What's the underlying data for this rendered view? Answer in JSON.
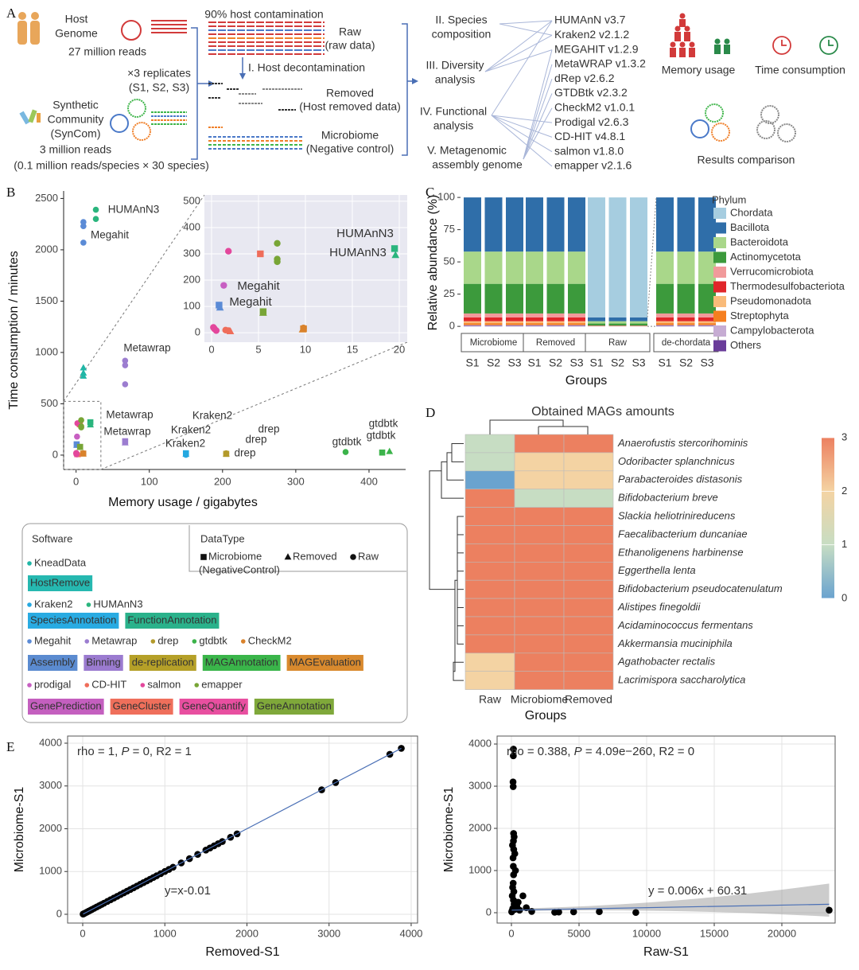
{
  "panel_labels": [
    "A",
    "B",
    "C",
    "D",
    "E"
  ],
  "panel_a": {
    "host": [
      "Host",
      "Genome"
    ],
    "host_reads": "27 million reads",
    "replicates": [
      "×3 replicates",
      "(S1, S2, S3)"
    ],
    "syncom": [
      "Synthetic",
      "Community",
      "(SynCom)"
    ],
    "syncom_reads": [
      "3 million reads",
      "(0.1 million reads/species  × 30 species)"
    ],
    "contamination": "90% host contamination",
    "decontamination": "I. Host decontamination",
    "raw": [
      "Raw",
      "(raw data)"
    ],
    "removed": [
      "Removed",
      "(Host removed data)"
    ],
    "microbiome": [
      "Microbiome",
      "(Negative control)"
    ],
    "analyses": [
      [
        "II. Species",
        "composition"
      ],
      [
        "III. Diversity",
        "analysis"
      ],
      [
        "IV. Functional",
        "analysis"
      ],
      [
        "V. Metagenomic",
        "assembly genome"
      ]
    ],
    "tools": [
      "HUMAnN v3.7",
      "Kraken2 v2.1.2",
      "MEGAHIT v1.2.9",
      "MetaWRAP v1.3.2",
      "dRep v2.6.2",
      "GTDBtk v2.3.2",
      "CheckM2 v1.0.1",
      "Prodigal v2.6.3",
      "CD-HIT v4.8.1",
      "salmon v1.8.0",
      "emapper v2.1.6"
    ],
    "memory": "Memory usage",
    "time": "Time consumption",
    "comparison": "Results comparison"
  },
  "chart_data": [
    {
      "type": "scatter",
      "xlabel": "Memory usage / gigabytes",
      "ylabel": "Time consumption / minutes",
      "xlim": [
        -17,
        450
      ],
      "ylim": [
        -140,
        2573
      ],
      "xticks": [
        0,
        100,
        200,
        300,
        400
      ],
      "yticks": [
        0,
        500,
        1000,
        1500,
        2000,
        2500
      ],
      "series": [
        {
          "name": "KneadData",
          "color": "#20b6a6",
          "category": "HostRemove",
          "x": [
            10,
            10,
            10
          ],
          "values": [
            850,
            800,
            770
          ],
          "markers": [
            "triangle",
            "triangle",
            "triangle"
          ]
        },
        {
          "name": "Kraken2",
          "color": "#25a8e0",
          "category": "SpeciesAnnotation",
          "x": [
            150,
            150,
            150
          ],
          "values": [
            18,
            8,
            3
          ],
          "markers": [
            "square",
            "triangle",
            "circle"
          ]
        },
        {
          "name": "HUMAnN3",
          "color": "#2ab57d",
          "category": "FunctionAnnotation",
          "x": [
            27,
            27,
            19.5,
            19.6
          ],
          "values": [
            2390,
            2300,
            320,
            295
          ],
          "markers": [
            "circle",
            "circle",
            "square",
            "triangle"
          ]
        },
        {
          "name": "Megahit",
          "color": "#5b8bd6",
          "category": "Assembly",
          "x": [
            10,
            10,
            10,
            0.8,
            0.9
          ],
          "values": [
            2270,
            2230,
            2070,
            105,
            95
          ],
          "markers": [
            "circle",
            "circle",
            "circle",
            "square",
            "triangle"
          ]
        },
        {
          "name": "Metawrap",
          "color": "#9c7dd0",
          "category": "Binning",
          "x": [
            67,
            67,
            67,
            67,
            67
          ],
          "values": [
            920,
            875,
            690,
            135,
            120
          ],
          "markers": [
            "circle",
            "circle",
            "circle",
            "square",
            "triangle"
          ]
        },
        {
          "name": "drep",
          "color": "#b39a2b",
          "category": "de-replication",
          "x": [
            205,
            205,
            205
          ],
          "values": [
            18,
            12,
            10
          ],
          "markers": [
            "circle",
            "square",
            "triangle"
          ]
        },
        {
          "name": "gtdbtk",
          "color": "#3bb34a",
          "category": "MAGAnnotation",
          "x": [
            368,
            418,
            428
          ],
          "values": [
            30,
            25,
            35
          ],
          "markers": [
            "circle",
            "square",
            "triangle"
          ]
        },
        {
          "name": "CheckM2",
          "color": "#d9822b",
          "category": "MAGEvaluation",
          "x": [
            9.8,
            9.7,
            9.8
          ],
          "values": [
            15,
            12,
            18
          ],
          "markers": [
            "square",
            "triangle",
            "circle"
          ]
        },
        {
          "name": "prodigal",
          "color": "#c75fc2",
          "category": "GenePrediction",
          "x": [
            1.3
          ],
          "values": [
            180
          ],
          "markers": [
            "circle"
          ]
        },
        {
          "name": "CD-HIT",
          "color": "#ef6d5a",
          "category": "GeneCluster",
          "x": [
            5.2,
            1.5,
            2,
            1.8
          ],
          "values": [
            300,
            10,
            5,
            8
          ],
          "markers": [
            "square",
            "circle",
            "triangle",
            "circle"
          ]
        },
        {
          "name": "salmon",
          "color": "#e3479c",
          "category": "GeneQuantify",
          "x": [
            1.8,
            0.3,
            0.5,
            0.2
          ],
          "values": [
            310,
            15,
            8,
            20
          ],
          "markers": [
            "circle",
            "circle",
            "circle",
            "circle"
          ]
        },
        {
          "name": "emapper",
          "color": "#78a536",
          "category": "GeneAnnotation",
          "x": [
            7,
            7,
            7,
            5.5,
            5.5
          ],
          "values": [
            340,
            280,
            270,
            80,
            75
          ],
          "markers": [
            "circle",
            "circle",
            "circle",
            "square",
            "triangle"
          ]
        }
      ],
      "annotations": [
        "HUMAnN3",
        "Megahit",
        "Metawrap",
        "Metawrap",
        "Metawrap",
        "Kraken2",
        "Kraken2",
        "Kraken2",
        "drep",
        "drep",
        "drep",
        "gtdbtk",
        "gtdbtk",
        "gtdbtk"
      ],
      "inset": {
        "xlim": [
          -0.76,
          20.85
        ],
        "ylim": [
          -36,
          524
        ],
        "xticks": [
          0,
          5,
          10,
          15,
          20
        ],
        "yticks": [
          0,
          100,
          200,
          300,
          400,
          500
        ],
        "grid": true,
        "annotations": [
          "HUMAnN3",
          "HUMAnN3",
          "Megahit",
          "Megahit"
        ]
      },
      "legend": {
        "software_title": "Software",
        "datatype_title": "DataType",
        "categories": [
          {
            "name": "HostRemove",
            "color": "#26b8b0"
          },
          {
            "name": "SpeciesAnnotation",
            "color": "#29abe2"
          },
          {
            "name": "FunctionAnnotation",
            "color": "#2ab28b"
          },
          {
            "name": "Assembly",
            "color": "#5b8bd0"
          },
          {
            "name": "Binning",
            "color": "#9b7bd0"
          },
          {
            "name": "de-replication",
            "color": "#b5a028"
          },
          {
            "name": "MAGAnnotation",
            "color": "#3ab54a"
          },
          {
            "name": "MAGEvaluation",
            "color": "#d98a2e"
          },
          {
            "name": "GenePrediction",
            "color": "#c45fbf"
          },
          {
            "name": "GeneCluster",
            "color": "#ef6f5b"
          },
          {
            "name": "GeneQuantify",
            "color": "#e84fa0"
          },
          {
            "name": "GeneAnnotation",
            "color": "#7fa83a"
          }
        ],
        "datatypes": [
          {
            "lines": [
              "Microbiome",
              "(NegativeControl)"
            ],
            "marker": "square"
          },
          {
            "lines": [
              "Removed"
            ],
            "marker": "triangle"
          },
          {
            "lines": [
              "Raw"
            ],
            "marker": "circle"
          }
        ]
      }
    },
    {
      "type": "bar",
      "stacked": true,
      "xlabel": "Groups",
      "ylabel": "Relative abundance (%)",
      "legend_title": "Phylum",
      "categories": [
        "S1",
        "S2",
        "S3",
        "S1",
        "S2",
        "S3",
        "S1",
        "S2",
        "S3",
        "S1",
        "S2",
        "S3"
      ],
      "groups": [
        "Microbiome",
        "Removed",
        "Raw",
        "de-chordata"
      ],
      "ylim": [
        -3,
        105
      ],
      "yticks": [
        0,
        25,
        50,
        75,
        100
      ],
      "series": [
        {
          "name": "Chordata",
          "color": "#a6cde0",
          "values": [
            0,
            0,
            0,
            0,
            0,
            0,
            93,
            93,
            93,
            0,
            0,
            0
          ]
        },
        {
          "name": "Bacillota",
          "color": "#2f6ea9",
          "values": [
            42,
            42,
            42,
            42,
            42,
            42,
            3,
            3,
            3,
            42,
            42,
            42
          ]
        },
        {
          "name": "Bacteroidota",
          "color": "#a9d78a",
          "values": [
            25,
            25,
            25,
            25,
            25,
            25,
            1.8,
            1.8,
            1.8,
            25,
            25,
            25
          ]
        },
        {
          "name": "Actinomycetota",
          "color": "#3c9a3c",
          "values": [
            23,
            23,
            23,
            23,
            23,
            23,
            1.6,
            1.6,
            1.6,
            23,
            23,
            23
          ]
        },
        {
          "name": "Verrucomicrobiota",
          "color": "#f19a9b",
          "values": [
            3,
            3,
            3,
            3,
            3,
            3,
            0.2,
            0.2,
            0.2,
            3,
            3,
            3
          ]
        },
        {
          "name": "Thermodesulfobacteriota",
          "color": "#e0262a",
          "values": [
            3,
            3,
            3,
            3,
            3,
            3,
            0.2,
            0.2,
            0.2,
            3,
            3,
            3
          ]
        },
        {
          "name": "Pseudomonadota",
          "color": "#f9bb7a",
          "values": [
            1.5,
            1.5,
            1.5,
            1.5,
            1.5,
            1.5,
            0.1,
            0.1,
            0.1,
            1.5,
            1.5,
            1.5
          ]
        },
        {
          "name": "Streptophyta",
          "color": "#f57f20",
          "values": [
            1.5,
            1.5,
            1.5,
            1.5,
            1.5,
            1.5,
            0.05,
            0.05,
            0.05,
            1.5,
            1.5,
            1.5
          ]
        },
        {
          "name": "Campylobacterota",
          "color": "#c6acd3",
          "values": [
            0.5,
            0.5,
            0.5,
            0.5,
            0.5,
            0.5,
            0.03,
            0.03,
            0.03,
            0.5,
            0.5,
            0.5
          ]
        },
        {
          "name": "Others",
          "color": "#6a3d9a",
          "values": [
            0.5,
            0.5,
            0.5,
            0.5,
            0.5,
            0.5,
            0.02,
            0.02,
            0.02,
            0.5,
            0.5,
            0.5
          ]
        }
      ]
    },
    {
      "type": "heatmap",
      "title": "Obtained MAGs amounts",
      "xlabel": "Groups",
      "columns": [
        "Raw",
        "Microbiome",
        "Removed"
      ],
      "rows": [
        "Anaerofustis stercorihominis",
        "Odoribacter splanchnicus",
        "Parabacteroides distasonis",
        "Bifidobacterium breve",
        "Slackia heliotrinireducens",
        "Faecalibacterium duncaniae",
        "Ethanoligenens harbinense",
        "Eggerthella lenta",
        "Bifidobacterium pseudocatenulatum",
        "Alistipes finegoldii",
        "Acidaminococcus fermentans",
        "Akkermansia muciniphila",
        "Agathobacter rectalis",
        "Lacrimispora saccharolytica"
      ],
      "values": [
        [
          1,
          3,
          3
        ],
        [
          1,
          2,
          2
        ],
        [
          0,
          2,
          2
        ],
        [
          3,
          1,
          1
        ],
        [
          3,
          3,
          3
        ],
        [
          3,
          3,
          3
        ],
        [
          3,
          3,
          3
        ],
        [
          3,
          3,
          3
        ],
        [
          3,
          3,
          3
        ],
        [
          3,
          3,
          3
        ],
        [
          3,
          3,
          3
        ],
        [
          3,
          3,
          3
        ],
        [
          2,
          3,
          3
        ],
        [
          2,
          3,
          3
        ]
      ],
      "colorbar": {
        "lim": [
          0,
          3
        ],
        "ticks": [
          0,
          1,
          2,
          3
        ],
        "colors": [
          "#6aa3cf",
          "#c7ddc3",
          "#f4d3a3",
          "#ec8060"
        ]
      }
    },
    {
      "type": "scatter",
      "xlabel": "Removed-S1",
      "ylabel": "Microbiome-S1",
      "grid": true,
      "color": "#000000",
      "xlim": [
        -184,
        4078
      ],
      "ylim": [
        -205,
        4167
      ],
      "xticks": [
        0,
        1000,
        2000,
        3000,
        4000
      ],
      "yticks": [
        0,
        1000,
        2000,
        3000,
        4000
      ],
      "x": [
        5,
        15,
        30,
        50,
        70,
        90,
        110,
        140,
        170,
        200,
        230,
        260,
        300,
        340,
        380,
        420,
        460,
        500,
        540,
        580,
        620,
        660,
        700,
        740,
        780,
        820,
        860,
        900,
        950,
        1000,
        1050,
        1100,
        1200,
        1300,
        1400,
        1500,
        1550,
        1600,
        1650,
        1700,
        1800,
        1880,
        2910,
        3080,
        3740,
        3880
      ],
      "values": [
        5,
        15,
        30,
        50,
        70,
        90,
        110,
        140,
        170,
        200,
        230,
        260,
        300,
        340,
        380,
        420,
        460,
        500,
        540,
        580,
        620,
        660,
        700,
        740,
        780,
        820,
        860,
        900,
        950,
        1000,
        1050,
        1100,
        1200,
        1300,
        1400,
        1500,
        1550,
        1600,
        1650,
        1700,
        1800,
        1880,
        2910,
        3080,
        3740,
        3880
      ],
      "fit": {
        "slope": 1,
        "intercept": -0.01,
        "color": "#4a6fb5"
      },
      "stats_text": [
        "rho = 1, ",
        "P",
        " = 0, R2 = 1"
      ],
      "fit_label": "y=x-0.01",
      "confidence_band": false
    },
    {
      "type": "scatter",
      "xlabel": "Raw-S1",
      "ylabel": "Microbiome-S1",
      "grid": true,
      "color": "#000000",
      "xlim": [
        -1059,
        23941
      ],
      "ylim": [
        -245,
        4189
      ],
      "xticks": [
        0,
        5000,
        10000,
        15000,
        20000
      ],
      "yticks": [
        0,
        1000,
        2000,
        3000,
        4000
      ],
      "x": [
        150,
        140,
        120,
        130,
        160,
        150,
        170,
        120,
        140,
        160,
        130,
        180,
        150,
        200,
        100,
        50,
        20,
        250,
        400,
        600,
        850,
        1100,
        1500,
        3200,
        3500,
        4600,
        6500,
        9200,
        23500,
        300,
        250,
        200,
        80,
        90,
        60,
        500
      ],
      "values": [
        3880,
        3720,
        3100,
        2990,
        1880,
        1700,
        1500,
        1300,
        1100,
        900,
        700,
        500,
        300,
        200,
        100,
        50,
        20,
        80,
        150,
        60,
        400,
        120,
        30,
        10,
        15,
        20,
        25,
        5,
        60,
        1000,
        1400,
        1800,
        1600,
        600,
        400,
        250
      ],
      "fit": {
        "slope": 0.006,
        "intercept": 60.31,
        "color": "#4a6fb5"
      },
      "stats_text": [
        "rho = 0.388, ",
        "P",
        " = 4.09e−260, R2 = 0"
      ],
      "fit_label": "y = 0.006x + 60.31",
      "confidence_band": true
    }
  ]
}
